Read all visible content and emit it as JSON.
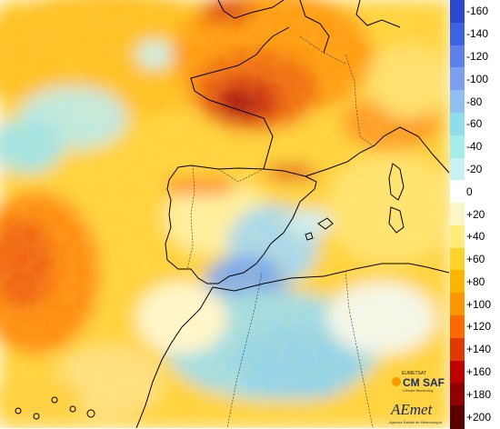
{
  "legend": {
    "units": "",
    "labels": [
      "-160",
      "-140",
      "-120",
      "-100",
      "-80",
      "-60",
      "-40",
      "-20",
      "0",
      "+20",
      "+40",
      "+60",
      "+80",
      "+100",
      "+120",
      "+140",
      "+160",
      "+180",
      "+200"
    ],
    "colors": [
      "#2a4bd0",
      "#3c64de",
      "#5a82e8",
      "#7aa0ee",
      "#8fc0ee",
      "#8fdde8",
      "#a6ece8",
      "#c8f2f2",
      "#ffffff",
      "#fbf6c6",
      "#ffec7a",
      "#ffd42a",
      "#ffb400",
      "#ff9600",
      "#ff6a00",
      "#e03a00",
      "#c00000",
      "#900000",
      "#5a0000"
    ]
  },
  "logos": {
    "cmsaf": {
      "top_text": "EUMETSAT",
      "main_text": "CM SAF",
      "sub_text": "Climate Monitoring"
    },
    "aemet": {
      "main_text": "AEmet",
      "sub_text": "Agencia Estatal de Meteorología"
    }
  },
  "map": {
    "region": "Iberian Peninsula, western Europe and North Africa",
    "colors": {
      "land_outline": "#000000",
      "border": "#333333"
    }
  }
}
